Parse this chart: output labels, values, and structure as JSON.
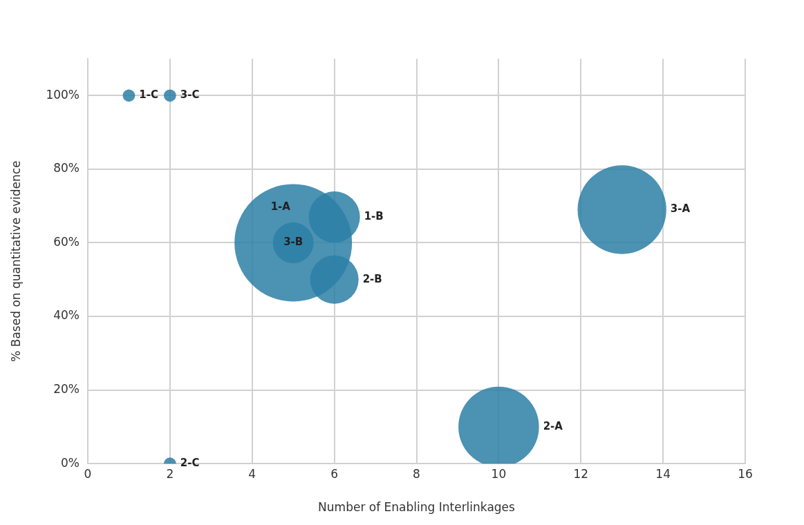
{
  "chart_data": {
    "type": "bubble",
    "xlabel": "Number of Enabling Interlinkages",
    "ylabel": "% Based on quantitative evidence",
    "series": [
      {
        "name": "1-C",
        "color": "#2b7fa6",
        "x": [
          1
        ],
        "values": [
          100
        ],
        "sizes": [
          0.011
        ]
      },
      {
        "name": "3-C",
        "color": "#2b7fa6",
        "x": [
          2
        ],
        "values": [
          100
        ],
        "sizes": [
          0.011
        ]
      },
      {
        "name": "2-C",
        "color": "#2b7fa6",
        "x": [
          2
        ],
        "values": [
          0
        ],
        "sizes": [
          0.011
        ]
      },
      {
        "name": "1-A",
        "color": "#2b7fa6",
        "x": [
          5
        ],
        "values": [
          60
        ],
        "sizes": [
          1
        ]
      },
      {
        "name": "1-B",
        "color": "#2b7fa6",
        "x": [
          6
        ],
        "values": [
          67
        ],
        "sizes": [
          0.19
        ]
      },
      {
        "name": "3-B",
        "color": "#2b7fa6",
        "x": [
          5
        ],
        "values": [
          60
        ],
        "sizes": [
          0.12
        ]
      },
      {
        "name": "2-B",
        "color": "#2b7fa6",
        "x": [
          6
        ],
        "values": [
          50
        ],
        "sizes": [
          0.17
        ]
      },
      {
        "name": "3-A",
        "color": "#2b7fa6",
        "x": [
          13
        ],
        "values": [
          69
        ],
        "sizes": [
          0.57
        ]
      },
      {
        "name": "2-A",
        "color": "#2b7fa6",
        "x": [
          10
        ],
        "values": [
          10
        ],
        "sizes": [
          0.47
        ]
      }
    ],
    "xlim": [
      0,
      16
    ],
    "xticks": [
      0,
      2,
      4,
      6,
      8,
      10,
      12,
      14,
      16
    ],
    "ylim": [
      0,
      110
    ],
    "yticks": [
      {
        "value": 0,
        "label": "0%"
      },
      {
        "value": 20,
        "label": "20%"
      },
      {
        "value": 40,
        "label": "40%"
      },
      {
        "value": 60,
        "label": "60%"
      },
      {
        "value": 80,
        "label": "80%"
      },
      {
        "value": 100,
        "label": "100%"
      }
    ],
    "grid": true,
    "legend": false
  }
}
